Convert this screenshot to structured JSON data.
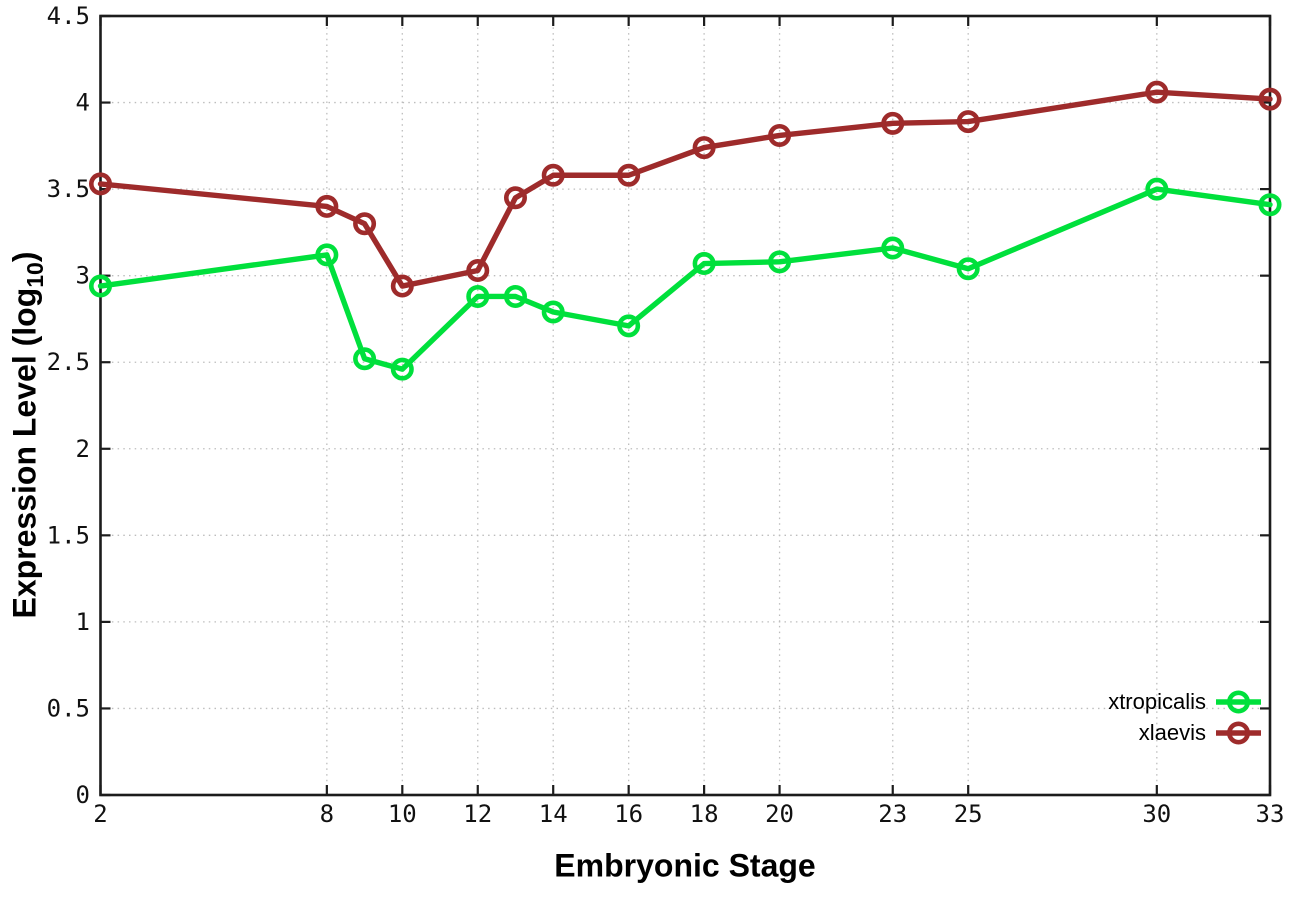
{
  "chart_data": {
    "type": "line",
    "title": "",
    "xlabel": "Embryonic Stage",
    "ylabel": "Expression Level (log10)",
    "ylabel_parts": {
      "pre": "Expression Level (log",
      "sub": "10",
      "post": ")"
    },
    "xlim": [
      2,
      33
    ],
    "ylim": [
      0,
      4.5
    ],
    "x_ticks": [
      2,
      8,
      10,
      12,
      14,
      16,
      18,
      20,
      23,
      25,
      30,
      33
    ],
    "x_tick_labels": [
      "2",
      "8",
      "10",
      "12",
      "14",
      "16",
      "18",
      "20",
      "23",
      "25",
      "30",
      "33"
    ],
    "y_ticks": [
      0,
      0.5,
      1,
      1.5,
      2,
      2.5,
      3,
      3.5,
      4,
      4.5
    ],
    "y_tick_labels": [
      "0",
      "0.5",
      "1",
      "1.5",
      "2",
      "2.5",
      "3",
      "3.5",
      "4",
      "4.5"
    ],
    "grid": true,
    "grid_color": "#bdbdbd",
    "axis_color": "#1c1c1c",
    "legend_position": "bottom-right",
    "x": [
      2,
      8,
      9,
      10,
      12,
      13,
      14,
      16,
      18,
      20,
      23,
      25,
      30,
      33
    ],
    "series": [
      {
        "name": "xtropicalis",
        "color": "#00E03C",
        "values": [
          2.94,
          3.12,
          2.52,
          2.46,
          2.88,
          2.88,
          2.79,
          2.71,
          3.07,
          3.08,
          3.16,
          3.04,
          3.5,
          3.41
        ]
      },
      {
        "name": "xlaevis",
        "color": "#9E2B2B",
        "values": [
          3.53,
          3.4,
          3.3,
          2.94,
          3.03,
          3.45,
          3.58,
          3.58,
          3.74,
          3.81,
          3.88,
          3.89,
          4.06,
          4.02
        ]
      }
    ]
  }
}
